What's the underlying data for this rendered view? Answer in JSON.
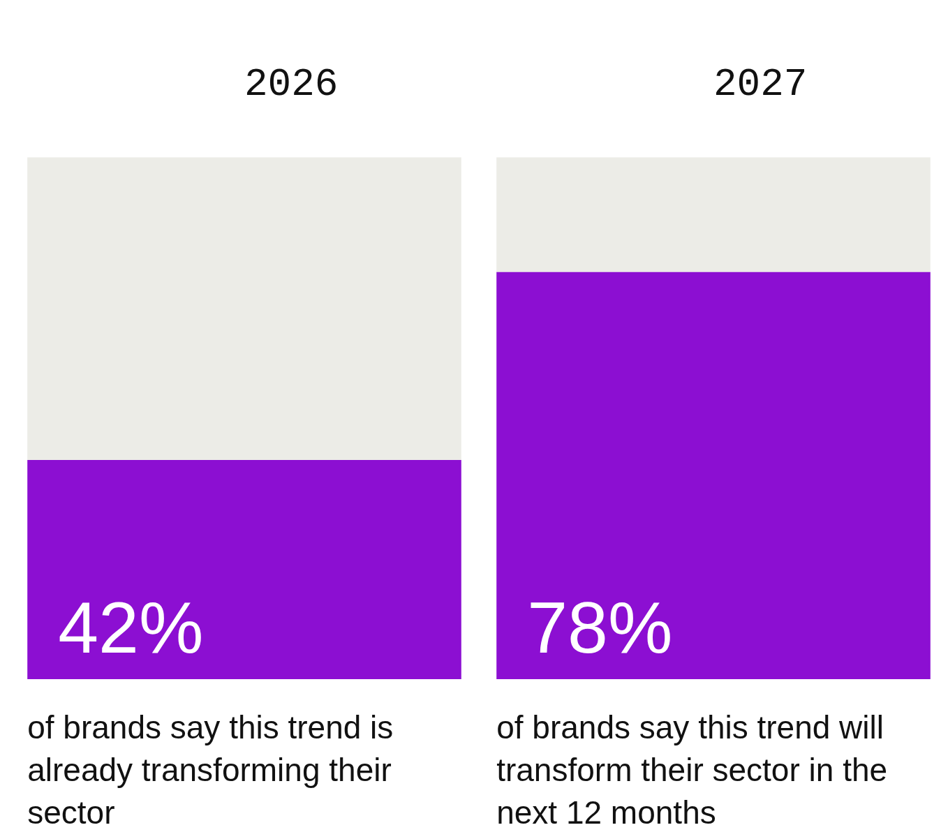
{
  "chart_data": {
    "type": "bar",
    "categories": [
      "2026",
      "2027"
    ],
    "stacked": true,
    "ylim": [
      0,
      100
    ],
    "tick_labels": "x",
    "grid": false,
    "series": [
      {
        "color": "#8c0fd2",
        "values": [
          42,
          78
        ],
        "value_labels": [
          "42%",
          "78%"
        ]
      },
      {
        "color": "#ecece7",
        "values": [
          58,
          22
        ]
      }
    ],
    "annotations": [
      "of brands say this trend is already transforming their sector",
      "of brands say this trend will transform their sector in the next 12 months"
    ]
  }
}
